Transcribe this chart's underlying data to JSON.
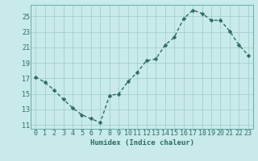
{
  "x": [
    0,
    1,
    2,
    3,
    4,
    5,
    6,
    7,
    8,
    9,
    10,
    11,
    12,
    13,
    14,
    15,
    16,
    17,
    18,
    19,
    20,
    21,
    22,
    23
  ],
  "y": [
    17.2,
    16.5,
    15.5,
    14.3,
    13.2,
    12.3,
    11.8,
    11.3,
    14.8,
    15.0,
    16.6,
    17.8,
    19.3,
    19.5,
    21.3,
    22.3,
    24.7,
    25.8,
    25.4,
    24.5,
    24.5,
    23.1,
    21.3,
    20.0
  ],
  "line_color": "#2d6b60",
  "marker": "D",
  "marker_size": 2.5,
  "linewidth": 1.0,
  "bg_color": "#c8eaea",
  "grid_color_minor": "#b8dede",
  "grid_color_major": "#a8cece",
  "xlabel": "Humidex (Indice chaleur)",
  "xlim": [
    -0.5,
    23.5
  ],
  "ylim": [
    10.5,
    26.5
  ],
  "yticks": [
    11,
    13,
    15,
    17,
    19,
    21,
    23,
    25
  ],
  "xticks": [
    0,
    1,
    2,
    3,
    4,
    5,
    6,
    7,
    8,
    9,
    10,
    11,
    12,
    13,
    14,
    15,
    16,
    17,
    18,
    19,
    20,
    21,
    22,
    23
  ],
  "xlabel_fontsize": 6.5,
  "tick_fontsize": 6.0,
  "tick_color": "#2d6b60"
}
